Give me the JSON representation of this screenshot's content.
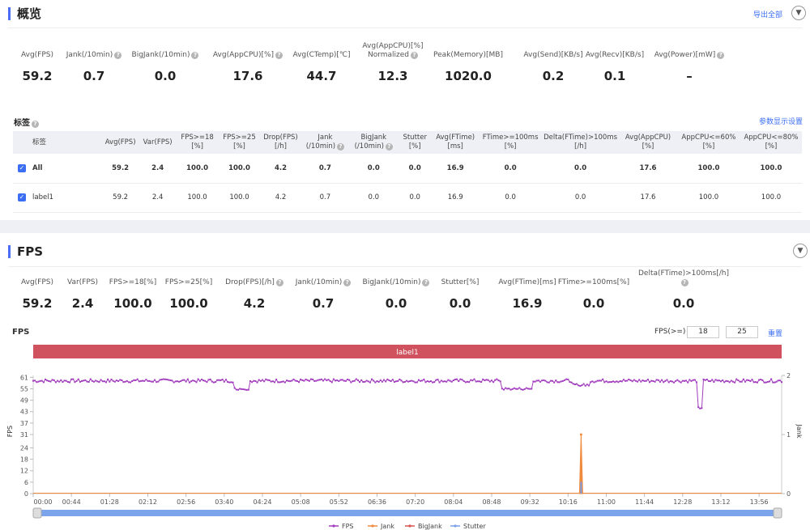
{
  "overview": {
    "title": "概览",
    "export_label": "导出全部",
    "metrics": [
      {
        "label": "Avg(FPS)",
        "value": "59.2",
        "help": false
      },
      {
        "label": "Jank(/10min)",
        "value": "0.7",
        "help": true
      },
      {
        "label": "BigJank(/10min)",
        "value": "0.0",
        "help": true
      },
      {
        "label": "Avg(AppCPU)[%]",
        "value": "17.6",
        "help": true
      },
      {
        "label": "Avg(CTemp)[℃]",
        "value": "44.7",
        "help": false
      },
      {
        "label": "Avg(AppCPU)[%]",
        "label2": "Normalized",
        "value": "12.3",
        "help": true
      },
      {
        "label": "Peak(Memory)[MB]",
        "value": "1020.0",
        "help": false
      },
      {
        "label": "Avg(Send)[KB/s]",
        "value": "0.2",
        "help": false
      },
      {
        "label": "Avg(Recv)[KB/s]",
        "value": "0.1",
        "help": false
      },
      {
        "label": "Avg(Power)[mW]",
        "value": "–",
        "help": true
      }
    ]
  },
  "labels": {
    "title": "标签",
    "settings_label": "参数显示设置",
    "columns": [
      {
        "l1": "标签",
        "l2": ""
      },
      {
        "l1": "Avg(FPS)",
        "l2": ""
      },
      {
        "l1": "Var(FPS)",
        "l2": ""
      },
      {
        "l1": "FPS>=18",
        "l2": "[%]"
      },
      {
        "l1": "FPS>=25",
        "l2": "[%]"
      },
      {
        "l1": "Drop(FPS)",
        "l2": "[/h]"
      },
      {
        "l1": "Jank",
        "l2": "(/10min)"
      },
      {
        "l1": "BigJank",
        "l2": "(/10min)"
      },
      {
        "l1": "Stutter",
        "l2": "[%]"
      },
      {
        "l1": "Avg(FTime)",
        "l2": "[ms]"
      },
      {
        "l1": "FTime>=100ms",
        "l2": "[%]"
      },
      {
        "l1": "Delta(FTime)>100ms",
        "l2": "[/h]"
      },
      {
        "l1": "Avg(AppCPU)",
        "l2": "[%]"
      },
      {
        "l1": "AppCPU<=60%",
        "l2": "[%]"
      },
      {
        "l1": "AppCPU<=80%",
        "l2": "[%]"
      }
    ],
    "rows": [
      {
        "name": "All",
        "values": [
          "59.2",
          "2.4",
          "100.0",
          "100.0",
          "4.2",
          "0.7",
          "0.0",
          "0.0",
          "16.9",
          "0.0",
          "0.0",
          "17.6",
          "100.0",
          "100.0"
        ]
      },
      {
        "name": "label1",
        "values": [
          "59.2",
          "2.4",
          "100.0",
          "100.0",
          "4.2",
          "0.7",
          "0.0",
          "0.0",
          "16.9",
          "0.0",
          "0.0",
          "17.6",
          "100.0",
          "100.0"
        ]
      }
    ]
  },
  "fps": {
    "title": "FPS",
    "metrics": [
      {
        "label": "Avg(FPS)",
        "value": "59.2",
        "help": false
      },
      {
        "label": "Var(FPS)",
        "value": "2.4",
        "help": false
      },
      {
        "label": "FPS>=18[%]",
        "value": "100.0",
        "help": false
      },
      {
        "label": "FPS>=25[%]",
        "value": "100.0",
        "help": false
      },
      {
        "label": "Drop(FPS)[/h]",
        "value": "4.2",
        "help": true
      },
      {
        "label": "Jank(/10min)",
        "value": "0.7",
        "help": true
      },
      {
        "label": "BigJank(/10min)",
        "value": "0.0",
        "help": true
      },
      {
        "label": "Stutter[%]",
        "value": "0.0",
        "help": false
      },
      {
        "label": "Avg(FTime)[ms]",
        "value": "16.9",
        "help": false
      },
      {
        "label": "FTime>=100ms[%]",
        "value": "0.0",
        "help": false
      },
      {
        "label": "Delta(FTime)>100ms[/h]",
        "value": "0.0",
        "help": true
      }
    ],
    "chart_label": "FPS",
    "threshold_label": "FPS(>=)",
    "threshold_1": "18",
    "threshold_2": "25",
    "reset_label": "重置",
    "band_label": "label1"
  },
  "colors": {
    "accent": "#3b6ef5",
    "fps": "#a23dbd",
    "jank": "#f08a3c",
    "bigjank": "#d9534f",
    "stutter": "#7a9ee8",
    "band": "#d0525e"
  },
  "chart_data": {
    "type": "line",
    "x_tick_labels": [
      "00:00",
      "00:44",
      "01:28",
      "02:12",
      "02:56",
      "03:40",
      "04:24",
      "05:08",
      "05:52",
      "06:36",
      "07:20",
      "08:04",
      "08:48",
      "09:32",
      "10:16",
      "11:00",
      "11:44",
      "12:28",
      "13:12",
      "13:56"
    ],
    "x_range_seconds": [
      0,
      862
    ],
    "y_left": {
      "label": "FPS",
      "ticks": [
        0,
        6,
        12,
        18,
        24,
        31,
        37,
        43,
        49,
        55,
        61
      ],
      "range": [
        0,
        62
      ]
    },
    "y_right": {
      "label": "Jank",
      "ticks": [
        0,
        1,
        2
      ],
      "range": [
        0,
        2
      ]
    },
    "legend": [
      "FPS",
      "Jank",
      "BigJank",
      "Stutter"
    ],
    "legend_position": "bottom",
    "grid": false,
    "series": [
      {
        "name": "FPS",
        "baseline": 59.2,
        "dips": [
          {
            "start": 232,
            "end": 248,
            "value": 55
          },
          {
            "start": 540,
            "end": 575,
            "value": 55
          },
          {
            "start": 622,
            "end": 640,
            "value": 57
          },
          {
            "start": 766,
            "end": 770,
            "value": 45
          }
        ]
      },
      {
        "name": "Jank",
        "points": [
          {
            "x": 631,
            "y": 1.0
          }
        ]
      },
      {
        "name": "BigJank",
        "points": []
      },
      {
        "name": "Stutter",
        "points": [
          {
            "x": 631,
            "y": 0.2
          }
        ]
      }
    ]
  }
}
